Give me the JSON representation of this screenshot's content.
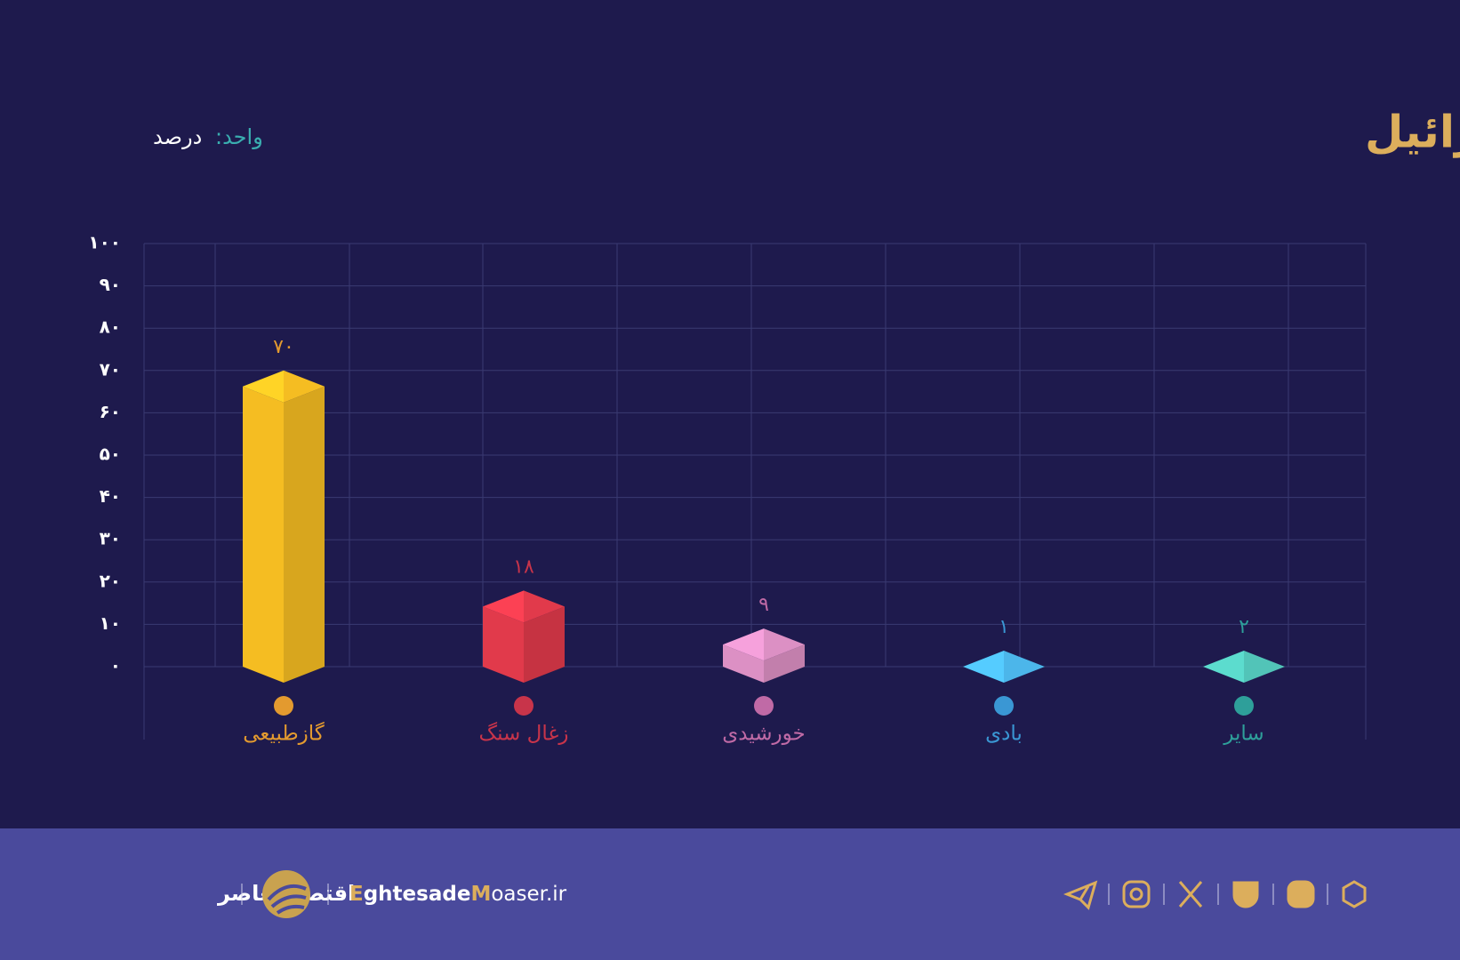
{
  "chart_data": {
    "type": "bar3d",
    "title": "سهم حامل های مختلف در تولید برق اسرائیل",
    "unit_label": "واحد:",
    "unit": "درصد",
    "categories": [
      "گازطبیعی",
      "زغال سنگ",
      "خورشیدی",
      "بادی",
      "سایر"
    ],
    "values": [
      70,
      18,
      9,
      1,
      2
    ],
    "value_labels": [
      "۷۰",
      "۱۸",
      "۹",
      "۱",
      "۲"
    ],
    "colors": [
      "#f5bd22",
      "#e13a4b",
      "#dc90c4",
      "#4cb6ea",
      "#52c4b8"
    ],
    "label_colors": [
      "#e39a2f",
      "#c8344a",
      "#c06aa6",
      "#3a97d4",
      "#2e9f9a"
    ],
    "ylim": [
      0,
      100
    ],
    "yticks": [
      {
        "value": 0,
        "label": "۰"
      },
      {
        "value": 10,
        "label": "۱۰"
      },
      {
        "value": 20,
        "label": "۲۰"
      },
      {
        "value": 30,
        "label": "۳۰"
      },
      {
        "value": 40,
        "label": "۴۰"
      },
      {
        "value": 50,
        "label": "۵۰"
      },
      {
        "value": 60,
        "label": "۶۰"
      },
      {
        "value": 70,
        "label": "۷۰"
      },
      {
        "value": 80,
        "label": "۸۰"
      },
      {
        "value": 90,
        "label": "۹۰"
      },
      {
        "value": 100,
        "label": "۱۰۰"
      }
    ],
    "grid": true
  },
  "footer": {
    "brand": "اقتصادمعاصر",
    "site": [
      "E",
      "ghtesade",
      "M",
      "oaser.ir"
    ]
  }
}
